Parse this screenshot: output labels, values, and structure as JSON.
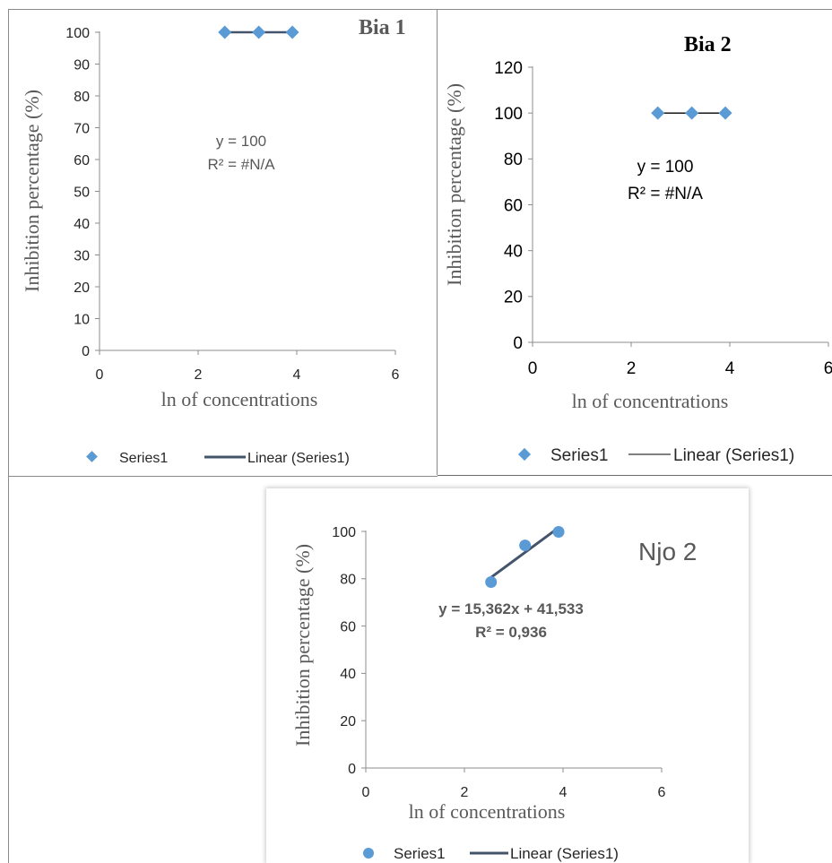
{
  "chart_data": [
    {
      "type": "scatter",
      "title": "Bia 1",
      "xlabel": "ln of concentrations",
      "ylabel": "Inhibition percentage (%)",
      "xlim": [
        0,
        6
      ],
      "ylim": [
        0,
        100
      ],
      "xticks": [
        0,
        2,
        4,
        6
      ],
      "yticks": [
        0,
        10,
        20,
        30,
        40,
        50,
        60,
        70,
        80,
        90,
        100
      ],
      "marker": "diamond",
      "series": [
        {
          "name": "Series1",
          "x": [
            2.54,
            3.23,
            3.91
          ],
          "y": [
            100,
            100,
            100
          ]
        }
      ],
      "trendline": {
        "name": "Linear (Series1)",
        "x": [
          2.54,
          3.91
        ],
        "y": [
          100,
          100
        ]
      },
      "equation": "y = 100",
      "r_squared": "R² = #N/A",
      "grid": false,
      "legend": "bottom"
    },
    {
      "type": "scatter",
      "title": "Bia 2",
      "xlabel": "ln of concentrations",
      "ylabel": "Inhibition percentage (%)",
      "xlim": [
        0,
        6
      ],
      "ylim": [
        0,
        120
      ],
      "xticks": [
        0,
        2,
        4,
        6
      ],
      "yticks": [
        0,
        20,
        40,
        60,
        80,
        100,
        120
      ],
      "marker": "diamond",
      "series": [
        {
          "name": "Series1",
          "x": [
            2.54,
            3.23,
            3.91
          ],
          "y": [
            100,
            100,
            100
          ]
        }
      ],
      "trendline": {
        "name": "Linear (Series1)",
        "x": [
          2.54,
          3.91
        ],
        "y": [
          100,
          100
        ]
      },
      "equation": "y = 100",
      "r_squared": "R² = #N/A",
      "grid": false,
      "legend": "bottom"
    },
    {
      "type": "scatter",
      "title": "Njo 2",
      "xlabel": "ln of concentrations",
      "ylabel": "Inhibition percentage (%)",
      "xlim": [
        0,
        6
      ],
      "ylim": [
        0,
        100
      ],
      "xticks": [
        0,
        2,
        4,
        6
      ],
      "yticks": [
        0,
        20,
        40,
        60,
        80,
        100
      ],
      "marker": "circle",
      "series": [
        {
          "name": "Series1",
          "x": [
            2.54,
            3.23,
            3.91
          ],
          "y": [
            78.6,
            94.1,
            99.8
          ]
        }
      ],
      "trendline": {
        "name": "Linear (Series1)",
        "x": [
          2.54,
          3.91
        ],
        "y": [
          80.55,
          101.6
        ]
      },
      "equation": "y = 15,362x + 41,533",
      "r_squared": "R² = 0,936",
      "grid": false,
      "legend": "bottom"
    }
  ],
  "colors": {
    "marker": "#5b9bd5",
    "trendline_dark": "#44546a",
    "trendline_black": "#000000",
    "axis": "#8c8c8c"
  }
}
